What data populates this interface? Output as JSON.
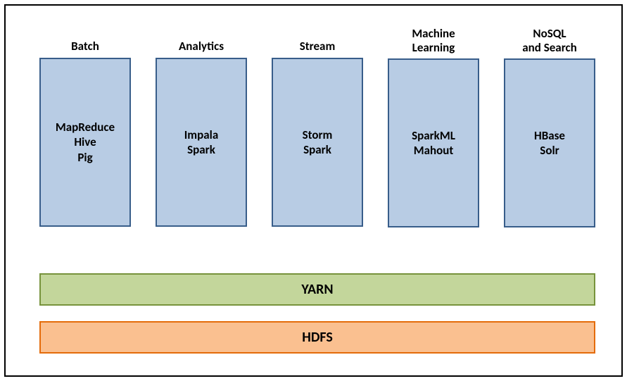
{
  "diagram": {
    "type": "infographic",
    "frame": {
      "border_color": "#000000",
      "background_color": "#ffffff"
    },
    "columns": [
      {
        "label": "Batch",
        "box": {
          "lines": [
            "MapReduce",
            "Hive",
            "Pig"
          ],
          "fill": "#b8cce4",
          "border": "#385d8a",
          "text_color": "#000000"
        }
      },
      {
        "label": "Analytics",
        "box": {
          "lines": [
            "Impala",
            "Spark"
          ],
          "fill": "#b8cce4",
          "border": "#385d8a",
          "text_color": "#000000"
        }
      },
      {
        "label": "Stream",
        "box": {
          "lines": [
            "Storm",
            "Spark"
          ],
          "fill": "#b8cce4",
          "border": "#385d8a",
          "text_color": "#000000"
        }
      },
      {
        "label": "Machine\nLearning",
        "box": {
          "lines": [
            "SparkML",
            "Mahout"
          ],
          "fill": "#b8cce4",
          "border": "#385d8a",
          "text_color": "#000000"
        }
      },
      {
        "label": "NoSQL\nand Search",
        "box": {
          "lines": [
            "HBase",
            "Solr"
          ],
          "fill": "#b8cce4",
          "border": "#385d8a",
          "text_color": "#000000"
        }
      }
    ],
    "bars": {
      "yarn": {
        "label": "YARN",
        "fill": "#c3d69b",
        "border": "#77933c",
        "text_color": "#000000"
      },
      "hdfs": {
        "label": "HDFS",
        "fill": "#fac090",
        "border": "#e46c0a",
        "text_color": "#000000"
      }
    },
    "label_fontsize": 17,
    "label_fontweight": "700",
    "box_content_fontsize": 17,
    "box_content_fontweight": "700",
    "bar_fontsize": 20,
    "bar_fontweight": "700"
  }
}
